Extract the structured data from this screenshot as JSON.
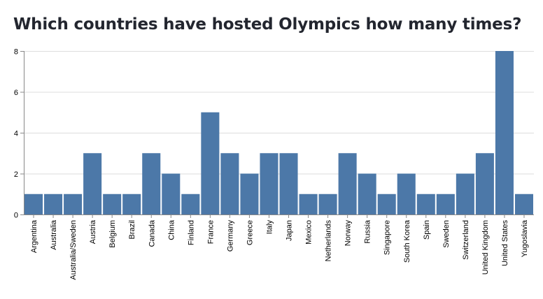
{
  "title": "Which countries have hosted Olympics how many times?",
  "colors": {
    "bar": "#4c78a8",
    "grid": "#dddddd",
    "axis": "#888888",
    "text": "#000000"
  },
  "chart_data": {
    "type": "bar",
    "title": "Which countries have hosted Olympics how many times?",
    "xlabel": "",
    "ylabel": "",
    "ylim": [
      0,
      8
    ],
    "yticks": [
      0,
      2,
      4,
      6,
      8
    ],
    "grid": true,
    "legend": null,
    "categories": [
      "Argentina",
      "Australia",
      "Australia/Sweden",
      "Austria",
      "Belgium",
      "Brazil",
      "Canada",
      "China",
      "Finland",
      "France",
      "Germany",
      "Greece",
      "Italy",
      "Japan",
      "Mexico",
      "Netherlands",
      "Norway",
      "Russia",
      "Singapore",
      "South Korea",
      "Spain",
      "Sweden",
      "Switzerland",
      "United Kingdom",
      "United States",
      "Yugoslavia"
    ],
    "values": [
      1,
      1,
      1,
      3,
      1,
      1,
      3,
      2,
      1,
      5,
      3,
      2,
      3,
      3,
      1,
      1,
      3,
      2,
      1,
      2,
      1,
      1,
      2,
      3,
      8,
      1
    ]
  }
}
